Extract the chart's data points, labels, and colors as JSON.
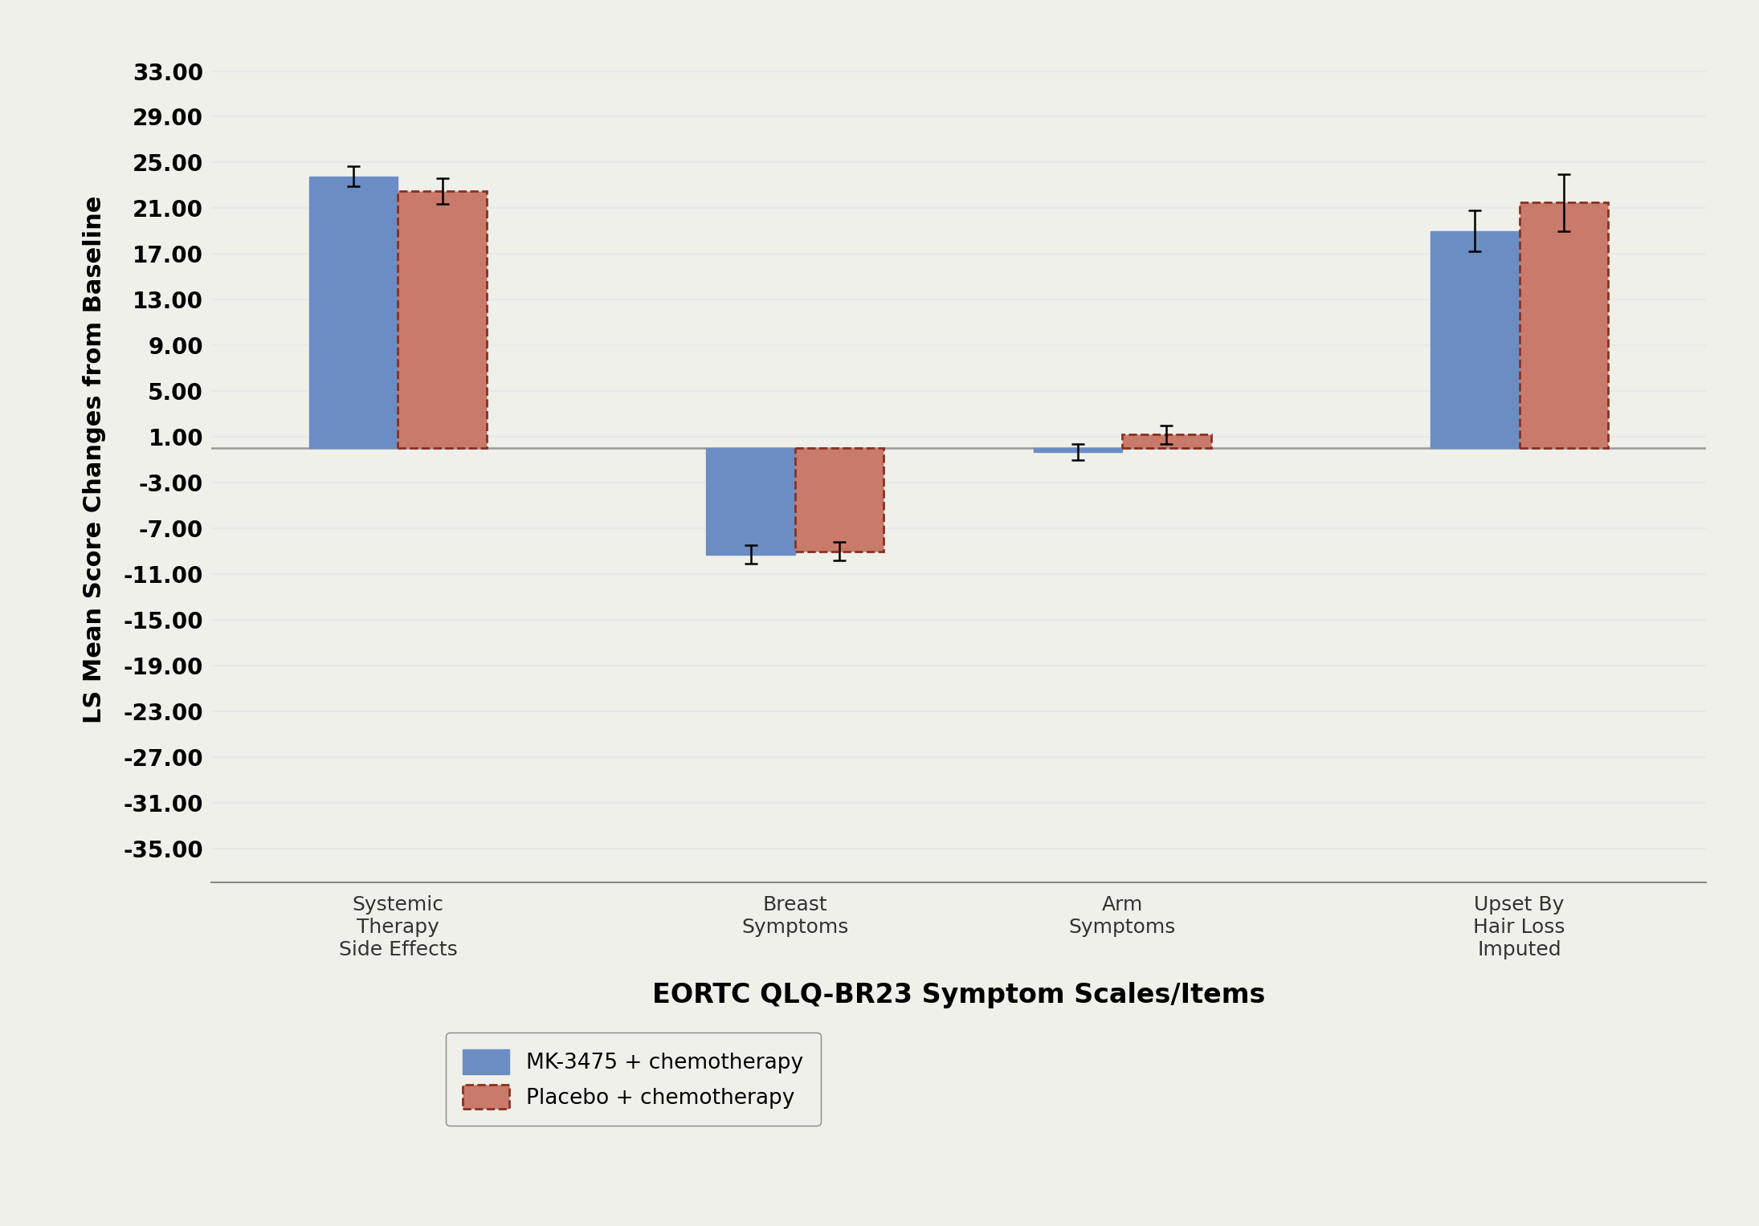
{
  "categories": [
    "Systemic\nTherapy\nSide Effects",
    "Breast\nSymptoms",
    "Arm\nSymptoms",
    "Upset By\nHair Loss\nImputed"
  ],
  "mk_values": [
    23.8,
    -9.3,
    -0.3,
    19.0
  ],
  "placebo_values": [
    22.5,
    -9.0,
    1.2,
    21.5
  ],
  "mk_errors": [
    0.9,
    0.8,
    0.7,
    1.8
  ],
  "placebo_errors": [
    1.1,
    0.8,
    0.8,
    2.5
  ],
  "mk_color": "#6B8DC4",
  "placebo_color": "#C97B6B",
  "placebo_edge_color": "#8B3020",
  "mk_label": "MK-3475 + chemotherapy",
  "placebo_label": "Placebo + chemotherapy",
  "ylabel": "LS Mean Score Changes from Baseline",
  "xlabel": "EORTC QLQ-BR23 Symptom Scales/Items",
  "yticks": [
    -35,
    -31,
    -27,
    -23,
    -19,
    -15,
    -11,
    -7,
    -3,
    1,
    5,
    9,
    13,
    17,
    21,
    25,
    29,
    33
  ],
  "ylim": [
    -38,
    36
  ],
  "background_color": "#f0f0eb",
  "grid_color": "#e8e8e8",
  "bar_width": 0.38,
  "group_positions": [
    0.5,
    2.2,
    3.6,
    5.3
  ]
}
